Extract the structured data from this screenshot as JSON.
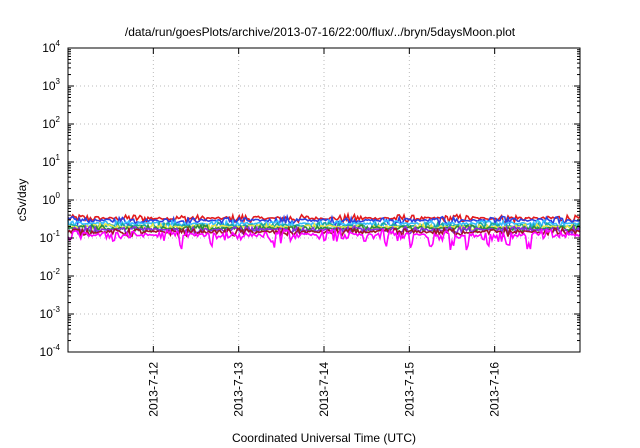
{
  "chart_data": {
    "type": "line",
    "title": "/data/run/goesPlots/archive/2013-07-16/22:00/flux/../bryn/5daysMoon.plot",
    "xlabel": "Coordinated Universal Time (UTC)",
    "ylabel": "cSv/day",
    "x_range": [
      "2013-07-11",
      "2013-07-17"
    ],
    "x_ticks": [
      "2013-7-12",
      "2013-7-13",
      "2013-7-14",
      "2013-7-15",
      "2013-7-16"
    ],
    "y_scale": "log",
    "ylim": [
      0.0001,
      10000
    ],
    "y_ticks": [
      {
        "base": "10",
        "exp": "4"
      },
      {
        "base": "10",
        "exp": "3"
      },
      {
        "base": "10",
        "exp": "2"
      },
      {
        "base": "10",
        "exp": "1"
      },
      {
        "base": "10",
        "exp": "0"
      },
      {
        "base": "10",
        "exp": "-1"
      },
      {
        "base": "10",
        "exp": "-2"
      },
      {
        "base": "10",
        "exp": "-3"
      },
      {
        "base": "10",
        "exp": "-4"
      }
    ],
    "grid": true,
    "series": [
      {
        "color": "#e31a1c",
        "level": 0.33,
        "noise": 0.09
      },
      {
        "color": "#2b3fe0",
        "level": 0.29,
        "noise": 0.08
      },
      {
        "color": "#33bbff",
        "level": 0.24,
        "noise": 0.06
      },
      {
        "color": "#1aa7a0",
        "level": 0.21,
        "noise": 0.05
      },
      {
        "color": "#e8e84a",
        "level": 0.195,
        "noise": 0.04
      },
      {
        "color": "#2e8b3a",
        "level": 0.18,
        "noise": 0.04
      },
      {
        "color": "#8a2be2",
        "level": 0.165,
        "noise": 0.04
      },
      {
        "color": "#a0152a",
        "level": 0.145,
        "noise": 0.04
      },
      {
        "color": "#ff00ff",
        "level": 0.12,
        "noise": 0.05
      }
    ]
  }
}
